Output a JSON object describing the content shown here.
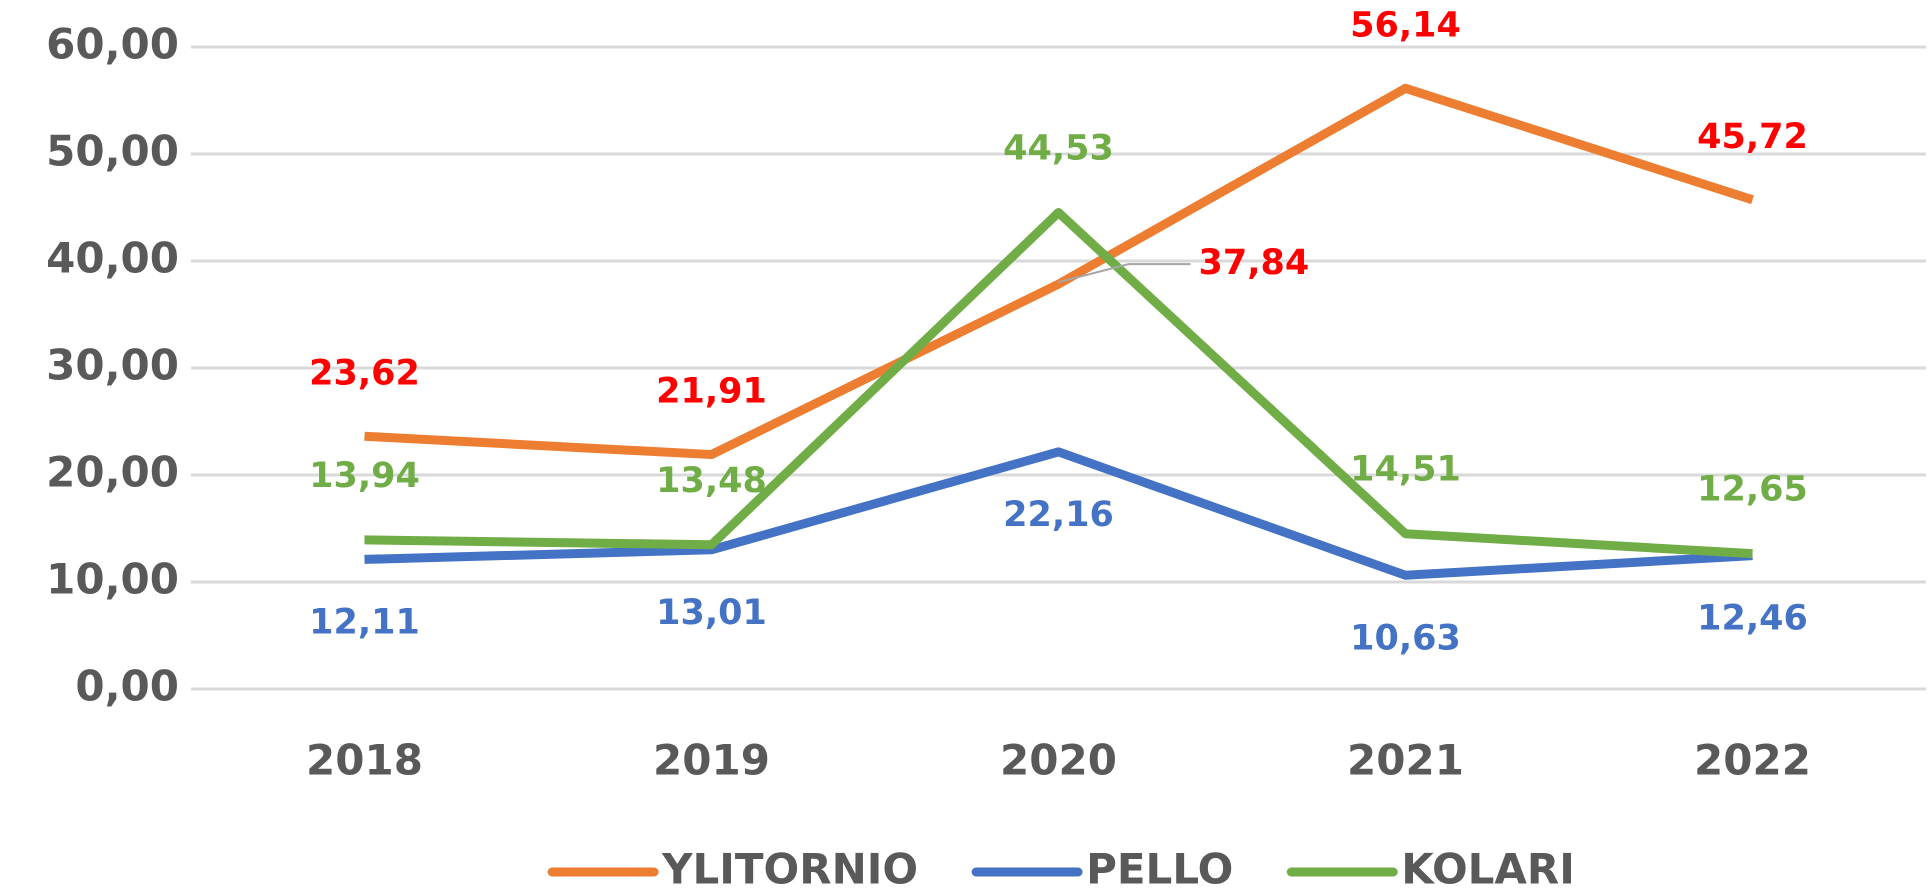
{
  "chart_data": {
    "type": "line",
    "categories": [
      "2018",
      "2019",
      "2020",
      "2021",
      "2022"
    ],
    "series": [
      {
        "name": "YLITORNIO",
        "color": "#ed7d31",
        "label_color": "#ff0000",
        "values": [
          23.62,
          21.91,
          37.84,
          56.14,
          45.72
        ],
        "value_labels": [
          "23,62",
          "21,91",
          "37,84",
          "56,14",
          "45,72"
        ]
      },
      {
        "name": "PELLO",
        "color": "#4472c4",
        "label_color": "#4472c4",
        "values": [
          12.11,
          13.01,
          22.16,
          10.63,
          12.46
        ],
        "value_labels": [
          "12,11",
          "13,01",
          "22,16",
          "10,63",
          "12,46"
        ]
      },
      {
        "name": "KOLARI",
        "color": "#70ad47",
        "label_color": "#70ad47",
        "values": [
          13.94,
          13.48,
          44.53,
          14.51,
          12.65
        ],
        "value_labels": [
          "13,94",
          "13,48",
          "44,53",
          "14,51",
          "12,65"
        ]
      }
    ],
    "ylim": [
      0,
      60
    ],
    "yticks": [
      {
        "value": 0,
        "label": "0,00"
      },
      {
        "value": 10,
        "label": "10,00"
      },
      {
        "value": 20,
        "label": "20,00"
      },
      {
        "value": 30,
        "label": "30,00"
      },
      {
        "value": 40,
        "label": "40,00"
      },
      {
        "value": 50,
        "label": "50,00"
      },
      {
        "value": 60,
        "label": "60,00"
      }
    ],
    "grid": true,
    "legend": "bottom"
  }
}
